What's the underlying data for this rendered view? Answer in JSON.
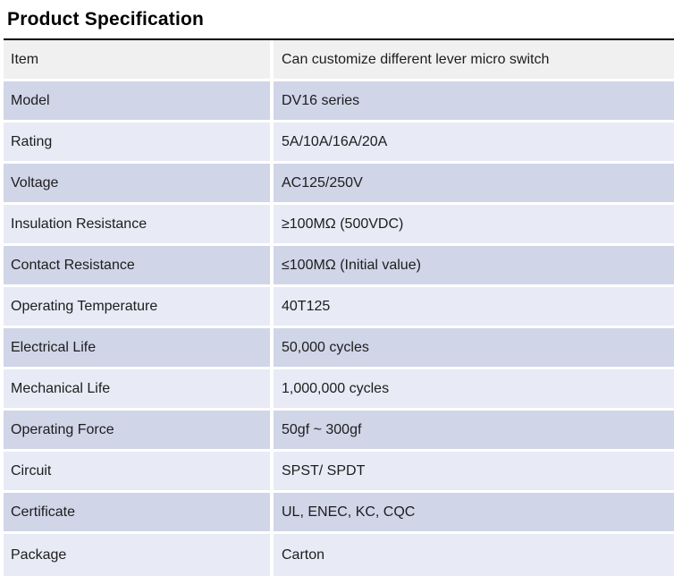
{
  "title": "Product Specification",
  "table": {
    "header": {
      "item": "Item",
      "value": "Can customize different lever micro switch"
    },
    "rows": [
      {
        "item": "Model",
        "value": "DV16 series"
      },
      {
        "item": "Rating",
        "value": "5A/10A/16A/20A"
      },
      {
        "item": "Voltage",
        "value": "AC125/250V"
      },
      {
        "item": "Insulation Resistance",
        "value": "≥100MΩ (500VDC)"
      },
      {
        "item": "Contact Resistance",
        "value": "≤100MΩ (Initial value)"
      },
      {
        "item": "Operating Temperature",
        "value": "40T125"
      },
      {
        "item": "Electrical Life",
        "value": "50,000 cycles"
      },
      {
        "item": "Mechanical Life",
        "value": "1,000,000 cycles"
      },
      {
        "item": "Operating Force",
        "value": "50gf ~ 300gf"
      },
      {
        "item": "Circuit",
        "value": "SPST/ SPDT"
      },
      {
        "item": "Certificate",
        "value": "UL, ENEC, KC, CQC"
      },
      {
        "item": "Package",
        "value": "Carton"
      }
    ]
  },
  "colors": {
    "header_bg": "#f0f0f0",
    "row_dark": "#d0d5e8",
    "row_light": "#e8eaf5",
    "border": "#000000",
    "text": "#1d1d1d",
    "title": "#000000"
  }
}
